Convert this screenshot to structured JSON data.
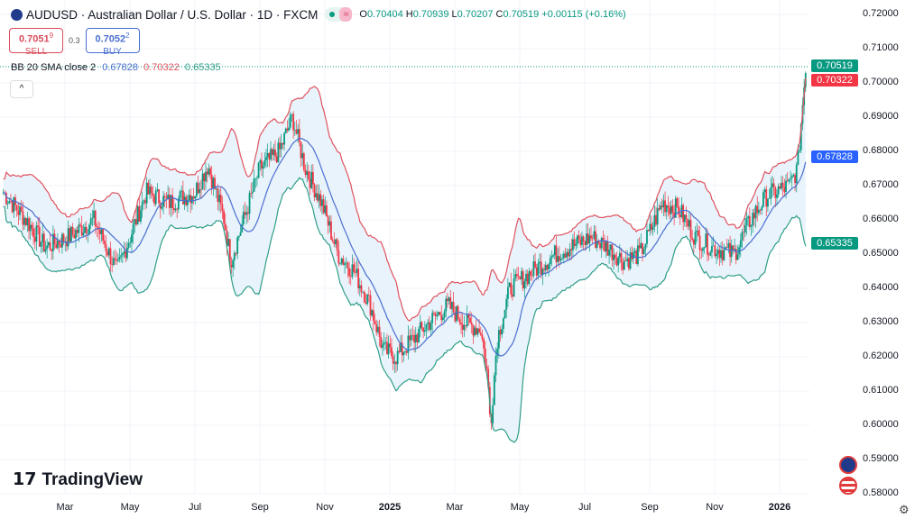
{
  "header": {
    "symbol_title": "AUDUSD · Australian Dollar / U.S. Dollar · 1D · FXCM",
    "o_label": "O",
    "o": "0.70404",
    "h_label": "H",
    "h": "0.70939",
    "l_label": "L",
    "l": "0.70207",
    "c_label": "C",
    "c": "0.70519",
    "change": "+0.00115 (+0.16%)"
  },
  "trade": {
    "sell_price": "0.7051",
    "sell_sup": "9",
    "sell_label": "SELL",
    "spread": "0.3",
    "buy_price": "0.7052",
    "buy_sup": "2",
    "buy_label": "BUY"
  },
  "indicator": {
    "name": "BB 20 SMA close 2",
    "basis": "0.67828",
    "upper": "0.70322",
    "lower": "0.65335"
  },
  "price_tags": {
    "last": "0.70519",
    "upper": "0.70322",
    "basis": "0.67828",
    "lower": "0.65335"
  },
  "brand": "TradingView",
  "colors": {
    "up": "#089981",
    "down": "#f23645",
    "upper": "#e0535f",
    "basis": "#4a6fd1",
    "lower": "#2f9e87",
    "fill": "#e9f3fb"
  },
  "chart_data": {
    "type": "candlestick",
    "title": "AUDUSD · 1D · FXCM",
    "y_ticks": [
      "0.72000",
      "0.71000",
      "0.70000",
      "0.69000",
      "0.68000",
      "0.67000",
      "0.66000",
      "0.65000",
      "0.64000",
      "0.63000",
      "0.62000",
      "0.61000",
      "0.60000",
      "0.59000",
      "0.58000"
    ],
    "ylim": [
      0.58,
      0.72
    ],
    "x_ticks": [
      "Mar",
      "May",
      "Jul",
      "Sep",
      "Nov",
      "2025",
      "Mar",
      "May",
      "Jul",
      "Sep",
      "Nov",
      "2026"
    ],
    "x_tick_months": [
      2,
      4,
      6,
      8,
      10,
      12,
      14,
      16,
      18,
      20,
      22,
      24
    ],
    "xlim_months": [
      0,
      24.8
    ],
    "approx_close_path": [
      [
        0.1,
        0.668
      ],
      [
        0.8,
        0.66
      ],
      [
        1.4,
        0.652
      ],
      [
        2.1,
        0.655
      ],
      [
        2.9,
        0.66
      ],
      [
        3.6,
        0.645
      ],
      [
        4.0,
        0.655
      ],
      [
        4.5,
        0.668
      ],
      [
        5.2,
        0.665
      ],
      [
        6.0,
        0.668
      ],
      [
        6.4,
        0.676
      ],
      [
        6.9,
        0.66
      ],
      [
        7.1,
        0.648
      ],
      [
        7.5,
        0.66
      ],
      [
        8.0,
        0.675
      ],
      [
        8.6,
        0.68
      ],
      [
        9.0,
        0.69
      ],
      [
        9.4,
        0.675
      ],
      [
        9.9,
        0.665
      ],
      [
        10.4,
        0.65
      ],
      [
        10.9,
        0.645
      ],
      [
        11.4,
        0.635
      ],
      [
        11.8,
        0.622
      ],
      [
        12.2,
        0.62
      ],
      [
        12.7,
        0.625
      ],
      [
        13.2,
        0.63
      ],
      [
        13.8,
        0.635
      ],
      [
        14.3,
        0.63
      ],
      [
        14.8,
        0.628
      ],
      [
        15.0,
        0.615
      ],
      [
        15.1,
        0.6
      ],
      [
        15.3,
        0.625
      ],
      [
        15.7,
        0.64
      ],
      [
        16.4,
        0.645
      ],
      [
        17.1,
        0.65
      ],
      [
        18.2,
        0.655
      ],
      [
        18.7,
        0.652
      ],
      [
        19.2,
        0.648
      ],
      [
        19.7,
        0.65
      ],
      [
        20.4,
        0.665
      ],
      [
        20.9,
        0.663
      ],
      [
        21.4,
        0.655
      ],
      [
        21.9,
        0.652
      ],
      [
        22.6,
        0.65
      ],
      [
        23.1,
        0.66
      ],
      [
        23.6,
        0.667
      ],
      [
        24.3,
        0.67
      ],
      [
        24.55,
        0.675
      ],
      [
        24.8,
        0.705
      ]
    ],
    "bollinger": {
      "period": 20,
      "stddev": 2,
      "basis": 0.67828,
      "upper": 0.70322,
      "lower": 0.65335
    }
  }
}
